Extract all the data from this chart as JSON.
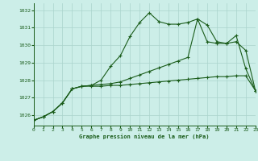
{
  "title": "Graphe pression niveau de la mer (hPa)",
  "background_color": "#cceee8",
  "grid_color": "#aad4cc",
  "line_color": "#1a5c1a",
  "ylim": [
    1025.4,
    1032.4
  ],
  "xlim": [
    0,
    23
  ],
  "yticks": [
    1026,
    1027,
    1028,
    1029,
    1030,
    1031,
    1032
  ],
  "xticks": [
    0,
    1,
    2,
    3,
    4,
    5,
    6,
    7,
    8,
    9,
    10,
    11,
    12,
    13,
    14,
    15,
    16,
    17,
    18,
    19,
    20,
    21,
    22,
    23
  ],
  "series1": {
    "x": [
      0,
      1,
      2,
      3,
      4,
      5,
      6,
      7,
      8,
      9,
      10,
      11,
      12,
      13,
      14,
      15,
      16,
      17,
      18,
      19,
      20,
      21,
      22,
      23
    ],
    "y": [
      1025.7,
      1025.9,
      1026.2,
      1026.7,
      1027.5,
      1027.65,
      1027.7,
      1028.0,
      1028.8,
      1029.4,
      1030.5,
      1031.3,
      1031.85,
      1031.35,
      1031.2,
      1031.2,
      1031.3,
      1031.5,
      1031.15,
      1030.2,
      1030.1,
      1030.55,
      1028.65,
      1027.4
    ]
  },
  "series2": {
    "x": [
      0,
      1,
      2,
      3,
      4,
      5,
      6,
      7,
      8,
      9,
      10,
      11,
      12,
      13,
      14,
      15,
      16,
      17,
      18,
      19,
      20,
      21,
      22,
      23
    ],
    "y": [
      1025.7,
      1025.9,
      1026.2,
      1026.7,
      1027.5,
      1027.65,
      1027.7,
      1027.75,
      1027.8,
      1027.9,
      1028.1,
      1028.3,
      1028.5,
      1028.7,
      1028.9,
      1029.1,
      1029.3,
      1031.5,
      1030.2,
      1030.1,
      1030.1,
      1030.2,
      1029.7,
      1027.4
    ]
  },
  "series3": {
    "x": [
      0,
      1,
      2,
      3,
      4,
      5,
      6,
      7,
      8,
      9,
      10,
      11,
      12,
      13,
      14,
      15,
      16,
      17,
      18,
      19,
      20,
      21,
      22,
      23
    ],
    "y": [
      1025.7,
      1025.9,
      1026.2,
      1026.7,
      1027.5,
      1027.65,
      1027.65,
      1027.65,
      1027.7,
      1027.7,
      1027.75,
      1027.8,
      1027.85,
      1027.9,
      1027.95,
      1028.0,
      1028.05,
      1028.1,
      1028.15,
      1028.2,
      1028.2,
      1028.25,
      1028.25,
      1027.4
    ]
  }
}
